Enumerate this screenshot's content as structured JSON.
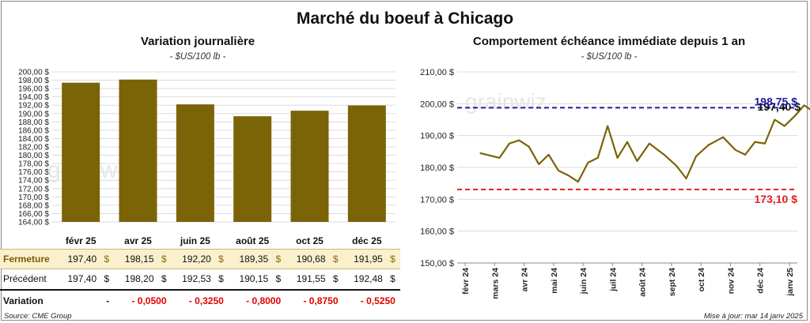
{
  "header": {
    "title": "Marché du boeuf à Chicago"
  },
  "left_panel": {
    "title": "Variation journalière",
    "unit": "- $US/100 lb -"
  },
  "right_panel": {
    "title": "Comportement échéance immédiate depuis 1 an",
    "unit": "- $US/100 lb -"
  },
  "table": {
    "months": [
      "févr 25",
      "avr 25",
      "juin 25",
      "août 25",
      "oct 25",
      "déc 25"
    ],
    "rows": [
      {
        "label": "Fermeture",
        "values": [
          "197,40",
          "198,15",
          "192,20",
          "189,35",
          "190,68",
          "191,95"
        ],
        "unit": "$"
      },
      {
        "label": "Précédent",
        "values": [
          "197,40",
          "198,20",
          "192,53",
          "190,15",
          "191,55",
          "192,48"
        ],
        "unit": "$"
      },
      {
        "label": "Variation",
        "values": [
          "-",
          "- 0,0500",
          "- 0,3250",
          "- 0,8000",
          "- 0,8750",
          "- 0,5250"
        ],
        "unit": ""
      }
    ]
  },
  "footer": {
    "source": "Source: CME Group",
    "updated": "Mise à jour: mar 14 janv 2025"
  },
  "watermark": "grainwiz",
  "colors": {
    "bar": "#7b6308",
    "line": "#7b6308",
    "high": "#1c1ca8",
    "low": "#e02020",
    "fermeture_bg": "#faf0cc"
  },
  "chart_data": [
    {
      "type": "bar",
      "title": "Variation journalière",
      "subtitle": "- $US/100 lb -",
      "categories": [
        "févr 25",
        "avr 25",
        "juin 25",
        "août 25",
        "oct 25",
        "déc 25"
      ],
      "values": [
        197.4,
        198.15,
        192.2,
        189.35,
        190.68,
        191.95
      ],
      "ylim": [
        164,
        200
      ],
      "yticks": [
        "164,00 $",
        "166,00 $",
        "168,00 $",
        "170,00 $",
        "172,00 $",
        "174,00 $",
        "176,00 $",
        "178,00 $",
        "180,00 $",
        "182,00 $",
        "184,00 $",
        "186,00 $",
        "188,00 $",
        "190,00 $",
        "192,00 $",
        "194,00 $",
        "196,00 $",
        "198,00 $",
        "200,00 $"
      ],
      "grid": true
    },
    {
      "type": "line",
      "title": "Comportement échéance immédiate depuis 1 an",
      "subtitle": "- $US/100 lb -",
      "ylim": [
        150,
        210
      ],
      "yticks": [
        "150,00 $",
        "160,00 $",
        "170,00 $",
        "180,00 $",
        "190,00 $",
        "200,00 $",
        "210,00 $"
      ],
      "xticks": [
        "févr 24",
        "mars 24",
        "avr 24",
        "mai 24",
        "juin 24",
        "juil 24",
        "août 24",
        "sept 24",
        "oct 24",
        "nov 24",
        "déc 24",
        "janv 25"
      ],
      "x": [
        "févr 24",
        "mars 24",
        "mars 24",
        "mars 24",
        "avr 24",
        "avr 24",
        "avr 24",
        "mai 24",
        "mai 24",
        "mai 24",
        "juin 24",
        "juin 24",
        "juin 24",
        "juil 24",
        "juil 24",
        "juil 24",
        "août 24",
        "août 24",
        "sept 24",
        "sept 24",
        "sept 24",
        "oct 24",
        "oct 24",
        "nov 24",
        "nov 24",
        "nov 24",
        "déc 24",
        "déc 24",
        "déc 24",
        "janv 25",
        "janv 25",
        "janv 25"
      ],
      "series": [
        {
          "values": [
            184.5,
            183.0,
            187.5,
            188.5,
            186.5,
            181.0,
            184.0,
            179.0,
            177.5,
            175.5,
            181.5,
            183.0,
            193.0,
            183.0,
            188.0,
            182.0,
            187.5,
            184.0,
            180.5,
            176.5,
            183.5,
            187.0,
            189.5,
            185.5,
            184.0,
            188.0,
            187.5,
            195.0,
            193.0,
            196.0,
            199.5,
            197.4
          ]
        }
      ],
      "reference_lines": [
        {
          "value": 198.75,
          "label": "198,75 $",
          "style": "dashed"
        },
        {
          "value": 173.1,
          "label": "173,10 $",
          "style": "dashed"
        }
      ],
      "last_value_label": "197,40 $",
      "grid": true
    }
  ]
}
